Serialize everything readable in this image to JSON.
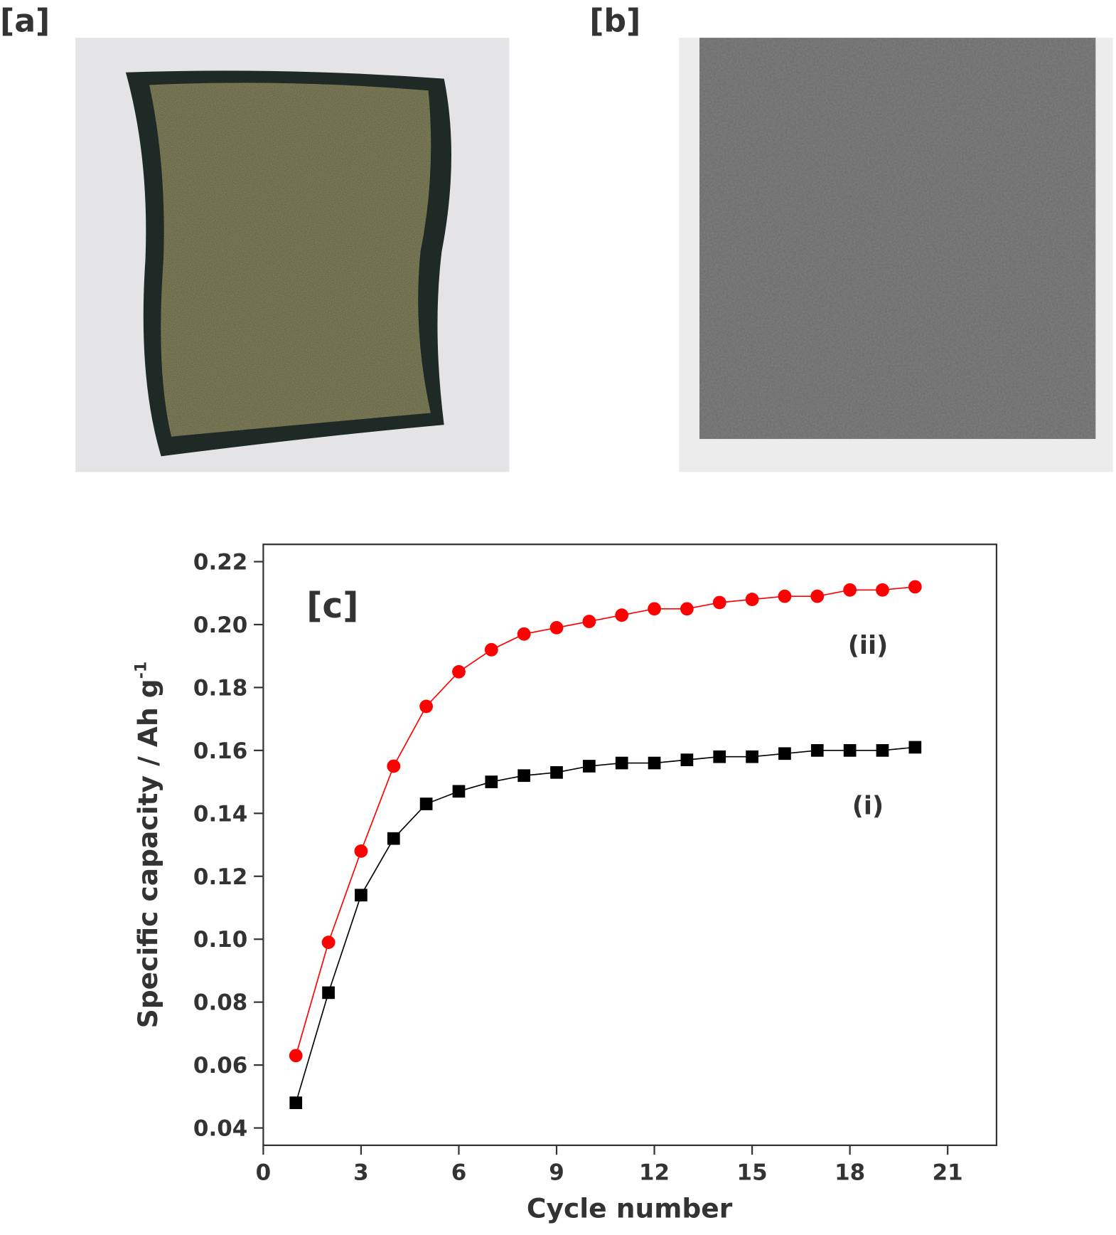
{
  "panels": [
    {
      "label": "[a]"
    },
    {
      "label": "[b]"
    }
  ],
  "chart_data": {
    "type": "line",
    "panel_label": "[c]",
    "x_label": "Cycle number",
    "y_label": "Specific capacity / Ah g",
    "y_label_superscript": "-1",
    "x": [
      1,
      2,
      3,
      4,
      5,
      6,
      7,
      8,
      9,
      10,
      11,
      12,
      13,
      14,
      15,
      16,
      17,
      18,
      19,
      20
    ],
    "series": [
      {
        "name": "(ii)",
        "color": "#ff0000",
        "marker": "circle",
        "values": [
          0.063,
          0.099,
          0.128,
          0.155,
          0.174,
          0.185,
          0.192,
          0.197,
          0.199,
          0.201,
          0.203,
          0.205,
          0.205,
          0.207,
          0.208,
          0.209,
          0.209,
          0.211,
          0.211,
          0.212
        ]
      },
      {
        "name": "(i)",
        "color": "#000000",
        "marker": "square",
        "values": [
          0.048,
          0.083,
          0.114,
          0.132,
          0.143,
          0.147,
          0.15,
          0.152,
          0.153,
          0.155,
          0.156,
          0.156,
          0.157,
          0.158,
          0.158,
          0.159,
          0.16,
          0.16,
          0.16,
          0.161
        ]
      }
    ],
    "xlim": [
      0,
      22.5
    ],
    "xticks": [
      0,
      3,
      6,
      9,
      12,
      15,
      18,
      21
    ],
    "ylim": [
      0.0345,
      0.2255
    ],
    "yticks": [
      0.04,
      0.06,
      0.08,
      {
        "value": 0.1,
        "label": "0.10"
      },
      0.12,
      0.14,
      0.16,
      0.18,
      {
        "value": 0.2,
        "label": "0.20"
      },
      0.22
    ]
  }
}
